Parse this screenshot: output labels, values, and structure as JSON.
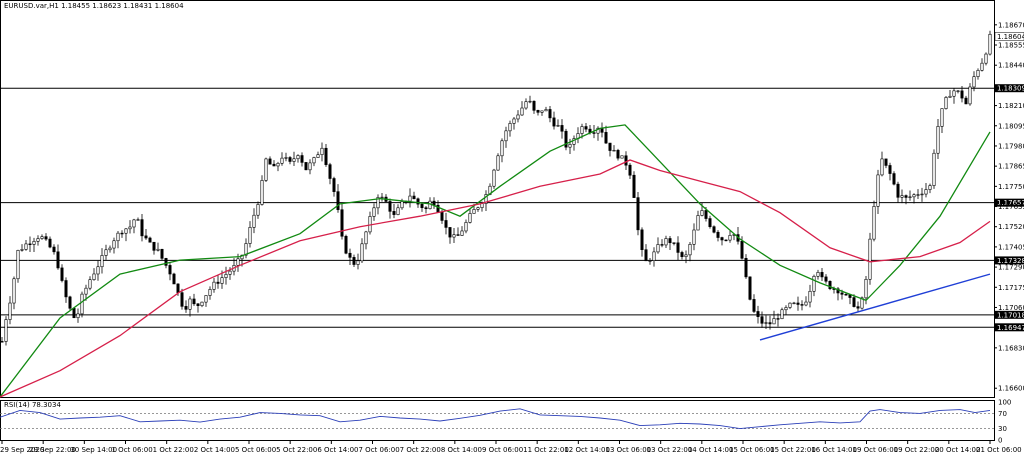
{
  "chart_data": {
    "type": "candlestick",
    "title": "EURUSD.var,H1  1.18455 1.18623 1.18431 1.18604",
    "ylim": [
      1.1655,
      1.188
    ],
    "y_ticks": [
      "1.18670",
      "1.18555",
      "1.18440",
      "1.18210",
      "1.18095",
      "1.17980",
      "1.17865",
      "1.17750",
      "1.17635",
      "1.17520",
      "1.17405",
      "1.17290",
      "1.17175",
      "1.17060",
      "1.16830",
      "1.16600"
    ],
    "x_ticks": [
      "29 Sep 2020",
      "29 Sep 22:00",
      "30 Sep 14:00",
      "1 Oct 06:00",
      "1 Oct 22:00",
      "2 Oct 14:00",
      "5 Oct 06:00",
      "5 Oct 22:00",
      "6 Oct 14:00",
      "7 Oct 06:00",
      "7 Oct 22:00",
      "8 Oct 14:00",
      "9 Oct 06:00",
      "11 Oct 22:00",
      "12 Oct 14:00",
      "13 Oct 06:00",
      "13 Oct 22:00",
      "14 Oct 14:00",
      "15 Oct 06:00",
      "15 Oct 22:00",
      "16 Oct 14:00",
      "19 Oct 06:00",
      "19 Oct 22:00",
      "20 Oct 14:00",
      "21 Oct 06:00"
    ],
    "current_price": "1.18604",
    "levels": [
      {
        "label": "1.18309",
        "value": 1.18309
      },
      {
        "label": "1.17657",
        "value": 1.17657
      },
      {
        "label": "1.17328",
        "value": 1.17328
      },
      {
        "label": "1.17018",
        "value": 1.17018
      },
      {
        "label": "1.16947",
        "value": 1.16947
      }
    ],
    "path": [
      [
        0,
        1.168
      ],
      [
        6,
        1.17
      ],
      [
        12,
        1.1715
      ],
      [
        18,
        1.1738
      ],
      [
        26,
        1.1742
      ],
      [
        34,
        1.1745
      ],
      [
        40,
        1.1747
      ],
      [
        48,
        1.1742
      ],
      [
        56,
        1.1735
      ],
      [
        64,
        1.1715
      ],
      [
        70,
        1.1705
      ],
      [
        76,
        1.1698
      ],
      [
        82,
        1.1712
      ],
      [
        90,
        1.1722
      ],
      [
        98,
        1.173
      ],
      [
        106,
        1.1738
      ],
      [
        114,
        1.1745
      ],
      [
        122,
        1.175
      ],
      [
        130,
        1.1752
      ],
      [
        136,
        1.1758
      ],
      [
        142,
        1.1748
      ],
      [
        150,
        1.1742
      ],
      [
        158,
        1.1738
      ],
      [
        166,
        1.173
      ],
      [
        172,
        1.1724
      ],
      [
        178,
        1.1714
      ],
      [
        184,
        1.1705
      ],
      [
        190,
        1.171
      ],
      [
        196,
        1.1706
      ],
      [
        204,
        1.1712
      ],
      [
        212,
        1.1718
      ],
      [
        220,
        1.1722
      ],
      [
        228,
        1.1726
      ],
      [
        236,
        1.173
      ],
      [
        244,
        1.1738
      ],
      [
        252,
        1.1755
      ],
      [
        260,
        1.177
      ],
      [
        266,
        1.179
      ],
      [
        274,
        1.1785
      ],
      [
        282,
        1.1792
      ],
      [
        290,
        1.1788
      ],
      [
        298,
        1.1794
      ],
      [
        306,
        1.1785
      ],
      [
        314,
        1.179
      ],
      [
        322,
        1.1798
      ],
      [
        330,
        1.178
      ],
      [
        336,
        1.1768
      ],
      [
        342,
        1.1745
      ],
      [
        348,
        1.1735
      ],
      [
        356,
        1.173
      ],
      [
        364,
        1.1745
      ],
      [
        372,
        1.176
      ],
      [
        378,
        1.177
      ],
      [
        386,
        1.1766
      ],
      [
        394,
        1.1758
      ],
      [
        402,
        1.1765
      ],
      [
        410,
        1.177
      ],
      [
        418,
        1.1765
      ],
      [
        426,
        1.1762
      ],
      [
        432,
        1.1768
      ],
      [
        440,
        1.176
      ],
      [
        448,
        1.1748
      ],
      [
        456,
        1.1745
      ],
      [
        464,
        1.1752
      ],
      [
        472,
        1.176
      ],
      [
        480,
        1.1765
      ],
      [
        488,
        1.1772
      ],
      [
        496,
        1.179
      ],
      [
        504,
        1.1805
      ],
      [
        512,
        1.1812
      ],
      [
        520,
        1.1818
      ],
      [
        528,
        1.1825
      ],
      [
        536,
        1.1815
      ],
      [
        544,
        1.182
      ],
      [
        552,
        1.1812
      ],
      [
        560,
        1.1808
      ],
      [
        568,
        1.1795
      ],
      [
        576,
        1.1805
      ],
      [
        584,
        1.181
      ],
      [
        592,
        1.1806
      ],
      [
        600,
        1.181
      ],
      [
        606,
        1.18
      ],
      [
        612,
        1.1795
      ],
      [
        620,
        1.1792
      ],
      [
        626,
        1.1788
      ],
      [
        632,
        1.178
      ],
      [
        636,
        1.176
      ],
      [
        640,
        1.174
      ],
      [
        646,
        1.1732
      ],
      [
        652,
        1.1735
      ],
      [
        660,
        1.1742
      ],
      [
        668,
        1.1745
      ],
      [
        676,
        1.174
      ],
      [
        684,
        1.1732
      ],
      [
        692,
        1.1745
      ],
      [
        700,
        1.1762
      ],
      [
        708,
        1.1755
      ],
      [
        716,
        1.1748
      ],
      [
        724,
        1.1744
      ],
      [
        732,
        1.175
      ],
      [
        740,
        1.174
      ],
      [
        746,
        1.1722
      ],
      [
        752,
        1.1705
      ],
      [
        760,
        1.1698
      ],
      [
        768,
        1.1696
      ],
      [
        776,
        1.17
      ],
      [
        784,
        1.1704
      ],
      [
        792,
        1.1708
      ],
      [
        800,
        1.1706
      ],
      [
        808,
        1.1712
      ],
      [
        816,
        1.173
      ],
      [
        822,
        1.1722
      ],
      [
        830,
        1.1718
      ],
      [
        838,
        1.1716
      ],
      [
        846,
        1.1712
      ],
      [
        854,
        1.1708
      ],
      [
        860,
        1.1704
      ],
      [
        866,
        1.1722
      ],
      [
        872,
        1.1755
      ],
      [
        876,
        1.1775
      ],
      [
        882,
        1.179
      ],
      [
        890,
        1.1782
      ],
      [
        898,
        1.177
      ],
      [
        906,
        1.1768
      ],
      [
        914,
        1.177
      ],
      [
        922,
        1.1772
      ],
      [
        930,
        1.1775
      ],
      [
        936,
        1.1805
      ],
      [
        944,
        1.1822
      ],
      [
        952,
        1.183
      ],
      [
        960,
        1.1828
      ],
      [
        966,
        1.1822
      ],
      [
        972,
        1.1835
      ],
      [
        978,
        1.1842
      ],
      [
        984,
        1.1848
      ],
      [
        990,
        1.186
      ]
    ],
    "ma_fast": [
      [
        0,
        1.1655
      ],
      [
        60,
        1.17
      ],
      [
        120,
        1.1725
      ],
      [
        180,
        1.1733
      ],
      [
        240,
        1.1735
      ],
      [
        300,
        1.1748
      ],
      [
        340,
        1.1765
      ],
      [
        380,
        1.1768
      ],
      [
        430,
        1.1765
      ],
      [
        460,
        1.1758
      ],
      [
        500,
        1.1775
      ],
      [
        550,
        1.1795
      ],
      [
        600,
        1.1808
      ],
      [
        625,
        1.181
      ],
      [
        650,
        1.1795
      ],
      [
        700,
        1.1765
      ],
      [
        740,
        1.1745
      ],
      [
        780,
        1.173
      ],
      [
        820,
        1.172
      ],
      [
        866,
        1.171
      ],
      [
        900,
        1.173
      ],
      [
        940,
        1.1758
      ],
      [
        990,
        1.1806
      ]
    ],
    "ma_slow": [
      [
        0,
        1.1655
      ],
      [
        60,
        1.167
      ],
      [
        120,
        1.169
      ],
      [
        180,
        1.1715
      ],
      [
        240,
        1.173
      ],
      [
        300,
        1.1744
      ],
      [
        360,
        1.1752
      ],
      [
        420,
        1.1758
      ],
      [
        480,
        1.1765
      ],
      [
        540,
        1.1775
      ],
      [
        600,
        1.1782
      ],
      [
        630,
        1.179
      ],
      [
        660,
        1.1784
      ],
      [
        700,
        1.1778
      ],
      [
        740,
        1.1772
      ],
      [
        780,
        1.176
      ],
      [
        830,
        1.174
      ],
      [
        870,
        1.1732
      ],
      [
        920,
        1.1735
      ],
      [
        960,
        1.1743
      ],
      [
        990,
        1.1755
      ]
    ],
    "trendline": {
      "x1": 760,
      "y1": 1.16875,
      "x2": 990,
      "y2": 1.1725
    },
    "indicator": {
      "label": "RSI(14) 78.3034",
      "ylim": [
        0,
        100
      ],
      "ticks": [
        "100",
        "70",
        "30",
        "0"
      ],
      "levels": [
        70,
        30
      ],
      "series": [
        [
          0,
          60
        ],
        [
          20,
          78
        ],
        [
          40,
          72
        ],
        [
          60,
          55
        ],
        [
          80,
          58
        ],
        [
          100,
          60
        ],
        [
          120,
          64
        ],
        [
          140,
          48
        ],
        [
          160,
          50
        ],
        [
          180,
          52
        ],
        [
          200,
          47
        ],
        [
          220,
          55
        ],
        [
          240,
          60
        ],
        [
          260,
          72
        ],
        [
          280,
          70
        ],
        [
          300,
          66
        ],
        [
          320,
          64
        ],
        [
          340,
          48
        ],
        [
          360,
          52
        ],
        [
          380,
          62
        ],
        [
          400,
          58
        ],
        [
          420,
          55
        ],
        [
          440,
          50
        ],
        [
          460,
          57
        ],
        [
          480,
          65
        ],
        [
          500,
          76
        ],
        [
          520,
          82
        ],
        [
          540,
          66
        ],
        [
          560,
          64
        ],
        [
          580,
          62
        ],
        [
          600,
          58
        ],
        [
          620,
          52
        ],
        [
          640,
          38
        ],
        [
          660,
          40
        ],
        [
          680,
          44
        ],
        [
          700,
          42
        ],
        [
          720,
          38
        ],
        [
          740,
          30
        ],
        [
          760,
          35
        ],
        [
          780,
          40
        ],
        [
          800,
          44
        ],
        [
          820,
          48
        ],
        [
          840,
          45
        ],
        [
          860,
          48
        ],
        [
          870,
          76
        ],
        [
          880,
          80
        ],
        [
          900,
          72
        ],
        [
          920,
          70
        ],
        [
          940,
          78
        ],
        [
          960,
          80
        ],
        [
          975,
          72
        ],
        [
          990,
          78
        ]
      ]
    }
  }
}
